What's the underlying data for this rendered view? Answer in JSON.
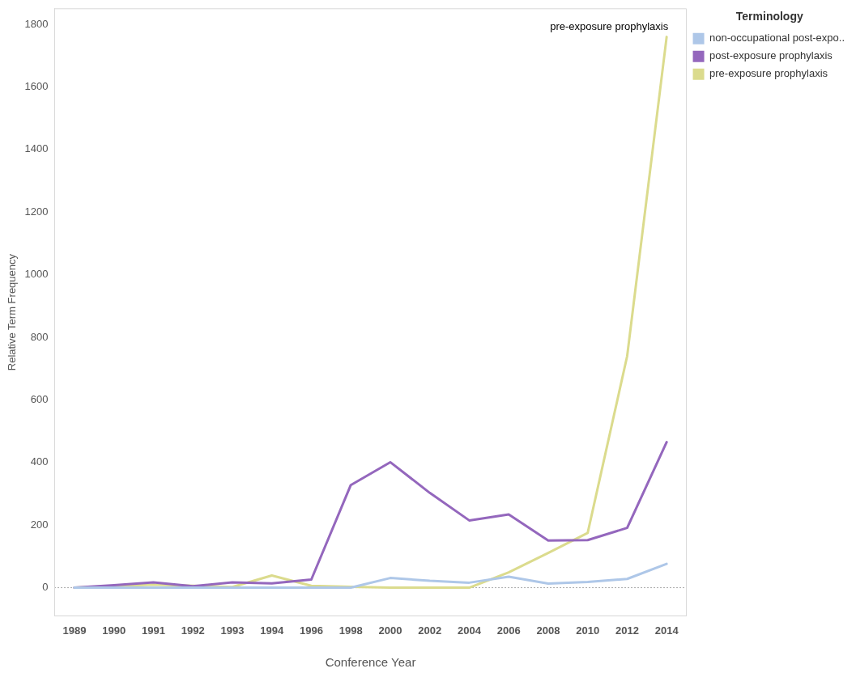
{
  "chart_data": {
    "type": "line",
    "xlabel": "Conference Year",
    "ylabel": "Relative Term Frequency",
    "legend_title": "Terminology",
    "categories": [
      "1989",
      "1990",
      "1991",
      "1992",
      "1993",
      "1994",
      "1996",
      "1998",
      "2000",
      "2002",
      "2004",
      "2006",
      "2008",
      "2010",
      "2012",
      "2014"
    ],
    "series": [
      {
        "name": "non-occupational post-expo..",
        "color": "#aec7e8",
        "values": [
          0,
          0,
          0,
          0,
          0,
          0,
          0,
          0,
          31,
          22,
          16,
          35,
          13,
          18,
          28,
          76
        ]
      },
      {
        "name": "post-exposure prophylaxis",
        "color": "#9467bd",
        "values": [
          0,
          8,
          17,
          5,
          17,
          14,
          26,
          328,
          401,
          303,
          215,
          234,
          151,
          152,
          191,
          465
        ]
      },
      {
        "name": "pre-exposure prophylaxis",
        "color": "#dbdb8d",
        "values": [
          0,
          null,
          10,
          null,
          2,
          39,
          6,
          3,
          0,
          0,
          0,
          49,
          111,
          175,
          740,
          1760
        ]
      }
    ],
    "ylim": [
      -90,
      1850
    ],
    "yticks": [
      0,
      200,
      400,
      600,
      800,
      1000,
      1200,
      1400,
      1600,
      1800
    ],
    "grid": false,
    "legend": "top right",
    "marker": "none",
    "line_style": "solid",
    "ref_lines": [
      {
        "axis": "y",
        "value": 0,
        "label": null,
        "line_style": "dotted",
        "color": "#555555"
      }
    ],
    "annotations": [
      {
        "text": "pre-exposure prophylaxis",
        "x": "2014",
        "y": 1760
      }
    ]
  }
}
